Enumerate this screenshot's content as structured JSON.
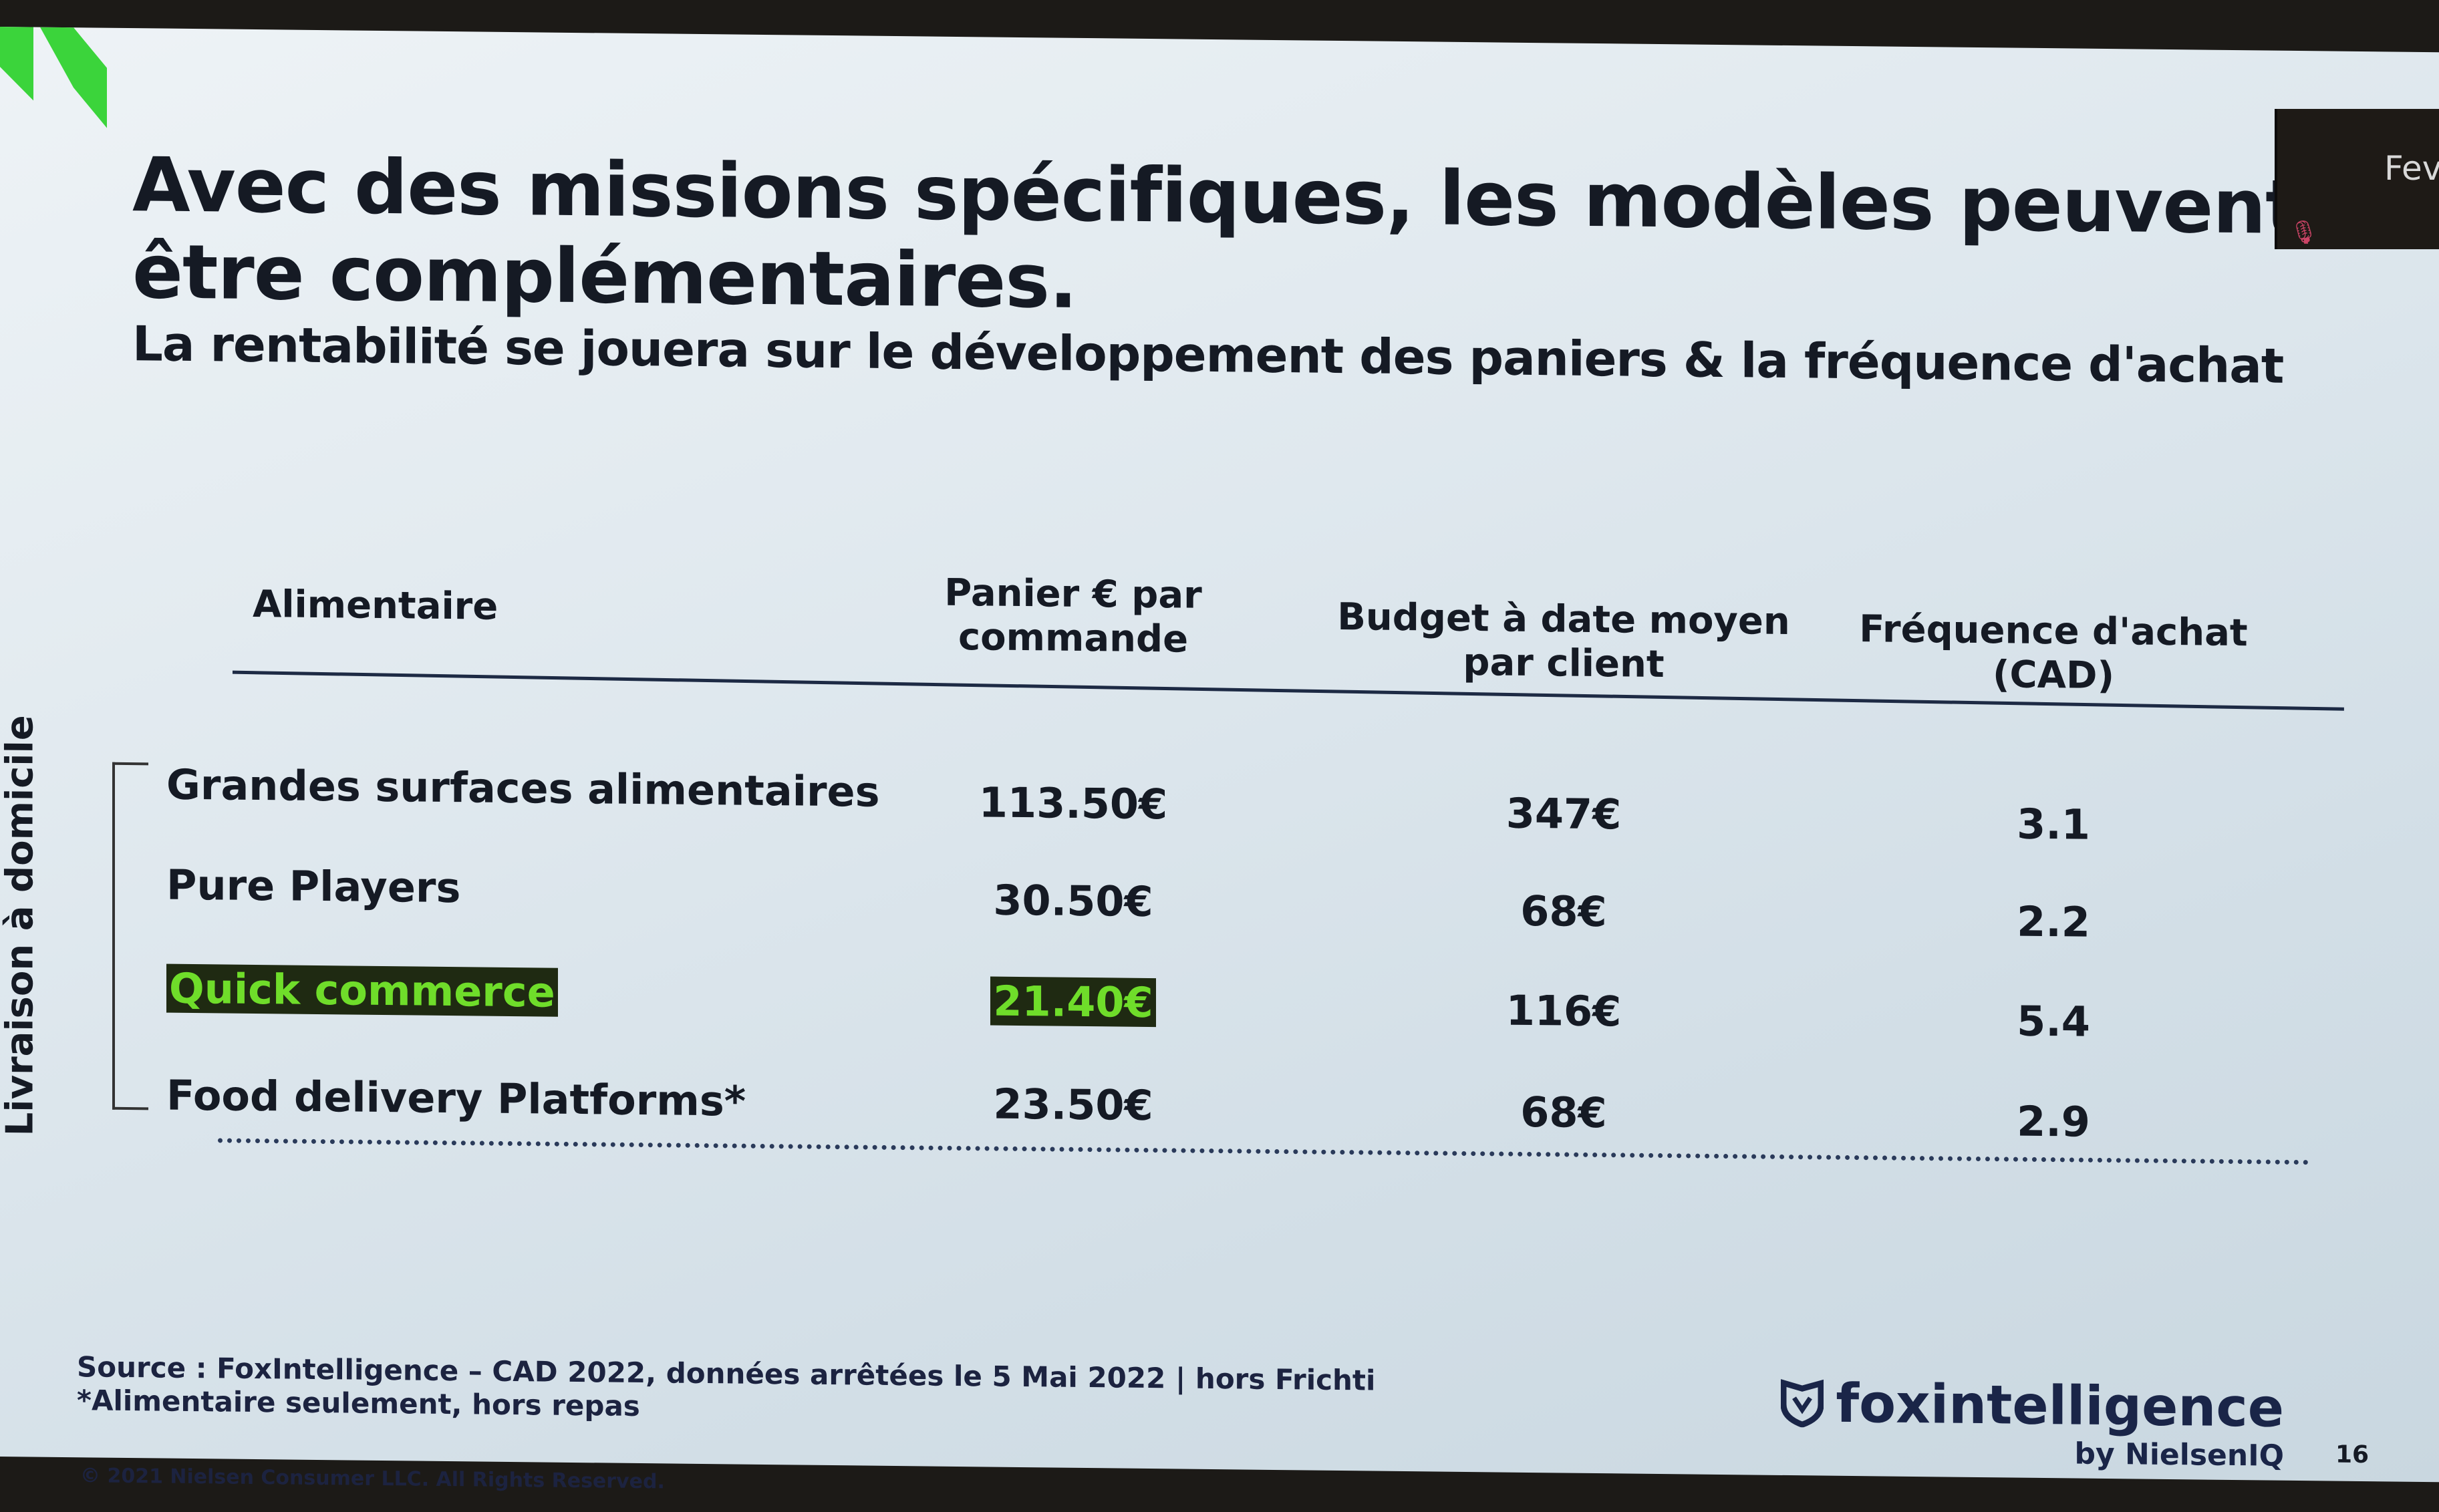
{
  "slide": {
    "title": "Avec des missions spécifiques, les modèles peuvent être complémentaires.",
    "subtitle": "La rentabilité se jouera sur le développement des paniers & la fréquence d'achat",
    "side_label": "Livraison à domicile",
    "table": {
      "headers": [
        "Alimentaire",
        "Panier € par commande",
        "Budget  à date moyen par client",
        "Fréquence d'achat (CAD)"
      ],
      "rows": [
        {
          "name": "Grandes surfaces alimentaires",
          "panier": "113.50€",
          "budget": "347€",
          "frequence": "3.1"
        },
        {
          "name": "Pure Players",
          "panier": "30.50€",
          "budget": "68€",
          "frequence": "2.2"
        },
        {
          "name": "Quick commerce",
          "panier": "21.40€",
          "budget": "116€",
          "frequence": "5.4"
        },
        {
          "name": "Food delivery Platforms*",
          "panier": "23.50€",
          "budget": "68€",
          "frequence": "2.9"
        }
      ]
    },
    "source": "Source : FoxIntelligence – CAD  2022, données arrêtées le 5 Mai 2022 | hors Frichti",
    "footnote": "*Alimentaire seulement, hors repas",
    "copyright": "© 2021 Nielsen Consumer LLC. All Rights Reserved.",
    "brand": "foxintelligence",
    "brand_sub": "by NielsenIQ",
    "page_number": "16",
    "highlight_color": "#6fdd2a",
    "accent_color": "#3bd43b"
  },
  "video_panel": {
    "participant_name": "Feva"
  }
}
